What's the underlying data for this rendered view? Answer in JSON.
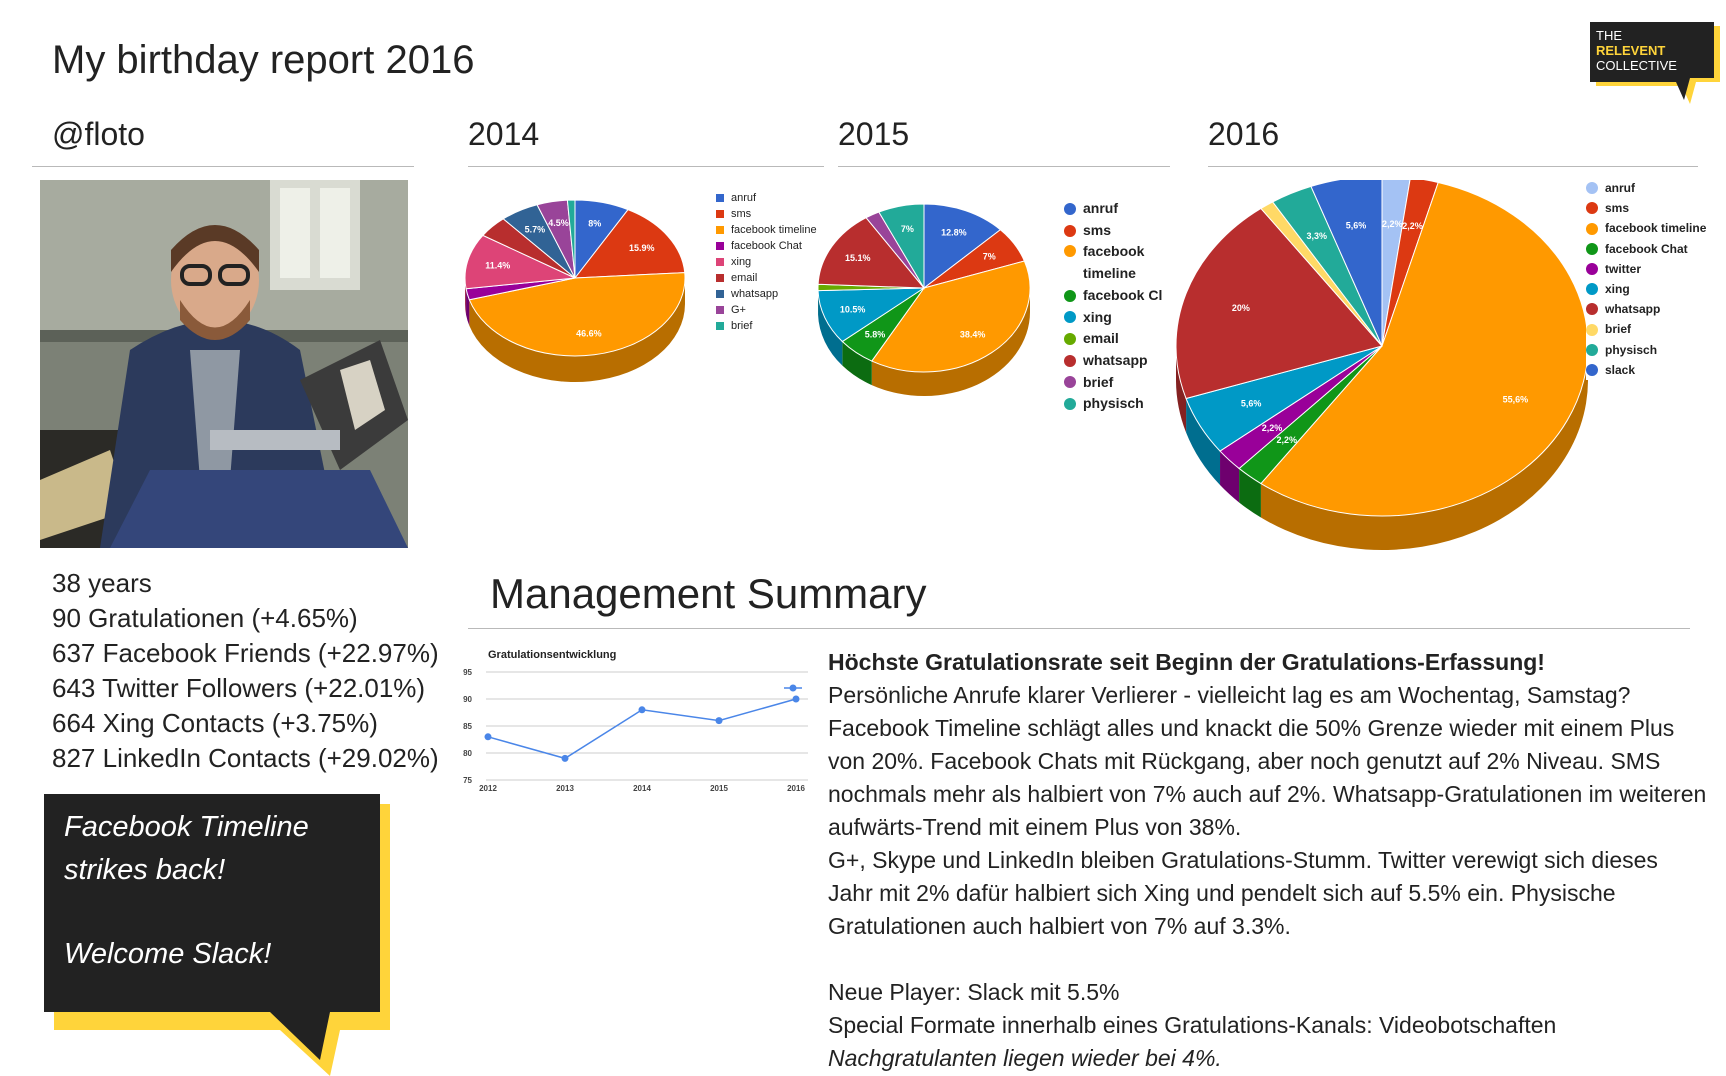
{
  "header": {
    "title": "My birthday report 2016"
  },
  "logo": {
    "line1": "THE",
    "line2": "RELEVENT",
    "line3": "COLLECTIVE",
    "accent": "#ffd43a",
    "bg": "#222222"
  },
  "profile": {
    "handle": "@floto",
    "stats": [
      "38 years",
      "90 Gratulationen (+4.65%)",
      "637 Facebook Friends (+22.97%)",
      "643 Twitter Followers (+22.01%)",
      "664 Xing Contacts (+3.75%)",
      "827 LinkedIn Contacts (+29.02%)"
    ]
  },
  "callout": {
    "line1": "Facebook Timeline",
    "line2": "strikes back!",
    "line3": "Welcome Slack!",
    "bg": "#222222",
    "accent": "#ffd43a"
  },
  "sections": {
    "y2014": "2014",
    "y2015": "2015",
    "y2016": "2016"
  },
  "summary": {
    "heading": "Management Summary",
    "lead": "Höchste Gratulationsrate seit Beginn der Gratulations-Erfassung!",
    "p1": "Persönliche Anrufe klarer Verlierer - vielleicht lag es am Wochentag, Samstag? Facebook Timeline schlägt alles und knackt die 50% Grenze wieder mit einem Plus von 20%. Facebook Chats mit Rückgang, aber noch genutzt auf 2% Niveau. SMS nochmals mehr als halbiert von 7% auch auf 2%. Whatsapp-Gratulationen im weiteren aufwärts-Trend mit einem Plus von 38%.",
    "p2": "G+, Skype und LinkedIn bleiben Gratulations-Stumm. Twitter verewigt sich dieses Jahr mit 2% dafür halbiert sich Xing und pendelt sich auf 5.5% ein. Physische Gratulationen auch halbiert von 7% auf 3.3%.",
    "p3": "Neue Player: Slack mit 5.5%",
    "p4": "Special Formate innerhalb eines Gratulations-Kanals: Videobotschaften",
    "p5": "Nachgratulanten liegen wieder bei 4%."
  },
  "chart_data": [
    {
      "type": "pie",
      "year": "2014",
      "slices": [
        {
          "label": "anruf",
          "value": 8,
          "color": "#3366cc",
          "text": "8%"
        },
        {
          "label": "sms",
          "value": 15.9,
          "color": "#dc3912",
          "text": "15.9%"
        },
        {
          "label": "facebook timeline",
          "value": 46.6,
          "color": "#ff9900",
          "text": "46.6%"
        },
        {
          "label": "facebook Chat",
          "value": 2.3,
          "color": "#990099",
          "text": ""
        },
        {
          "label": "xing",
          "value": 11.4,
          "color": "#dd4477",
          "text": "11.4%"
        },
        {
          "label": "email",
          "value": 4.5,
          "color": "#b82e2e",
          "text": ""
        },
        {
          "label": "whatsapp",
          "value": 5.7,
          "color": "#316395",
          "text": "5.7%"
        },
        {
          "label": "G+",
          "value": 4.5,
          "color": "#994499",
          "text": "4.5%"
        },
        {
          "label": "brief",
          "value": 1.1,
          "color": "#22aa99",
          "text": ""
        }
      ]
    },
    {
      "type": "pie",
      "year": "2015",
      "slices": [
        {
          "label": "anruf",
          "value": 12.8,
          "color": "#3366cc",
          "text": "12.8%"
        },
        {
          "label": "sms",
          "value": 7,
          "color": "#dc3912",
          "text": "7%"
        },
        {
          "label": "facebook timeline",
          "value": 38.4,
          "color": "#ff9900",
          "text": "38.4%"
        },
        {
          "label": "facebook Cl",
          "value": 5.8,
          "color": "#109618",
          "text": "5.8%"
        },
        {
          "label": "xing",
          "value": 10.5,
          "color": "#0099c6",
          "text": "10.5%"
        },
        {
          "label": "email",
          "value": 1.2,
          "color": "#66aa00",
          "text": ""
        },
        {
          "label": "whatsapp",
          "value": 15.1,
          "color": "#b82e2e",
          "text": "15.1%"
        },
        {
          "label": "brief",
          "value": 2.2,
          "color": "#994499",
          "text": ""
        },
        {
          "label": "physisch",
          "value": 7,
          "color": "#22aa99",
          "text": "7%"
        }
      ]
    },
    {
      "type": "pie",
      "year": "2016",
      "slices": [
        {
          "label": "anruf",
          "value": 2.2,
          "color": "#a4c2f4",
          "text": "2,2%"
        },
        {
          "label": "sms",
          "value": 2.2,
          "color": "#dc3912",
          "text": "2,2%"
        },
        {
          "label": "facebook timeline",
          "value": 55.6,
          "color": "#ff9900",
          "text": "55,6%"
        },
        {
          "label": "facebook Chat",
          "value": 2.2,
          "color": "#109618",
          "text": "2,2%"
        },
        {
          "label": "twitter",
          "value": 2.2,
          "color": "#990099",
          "text": "2,2%"
        },
        {
          "label": "xing",
          "value": 5.6,
          "color": "#0099c6",
          "text": "5,6%"
        },
        {
          "label": "whatsapp",
          "value": 20,
          "color": "#b82e2e",
          "text": "20%"
        },
        {
          "label": "brief",
          "value": 1.1,
          "color": "#ffd966",
          "text": ""
        },
        {
          "label": "physisch",
          "value": 3.3,
          "color": "#22aa99",
          "text": "3,3%"
        },
        {
          "label": "slack",
          "value": 5.6,
          "color": "#3366cc",
          "text": "5,6%"
        }
      ]
    },
    {
      "type": "line",
      "title": "Gratulationsentwicklung",
      "x": [
        "2012",
        "2013",
        "2014",
        "2015",
        "2016"
      ],
      "series": [
        {
          "values": [
            83,
            79,
            88,
            86,
            90
          ],
          "color": "#4a86e8"
        }
      ],
      "ylim": [
        75,
        95
      ],
      "yticks": [
        "75",
        "80",
        "85",
        "90",
        "95"
      ],
      "grid": true,
      "legend": "top-right"
    }
  ]
}
